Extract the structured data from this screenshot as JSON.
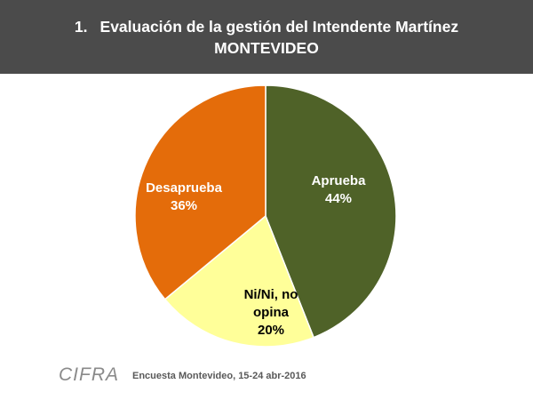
{
  "header": {
    "title_number": "1.",
    "title_line1": "Evaluación de la gestión del Intendente Martínez",
    "title_line2": "MONTEVIDEO"
  },
  "chart_data": {
    "type": "pie",
    "slices": [
      {
        "label_lines": [
          "Aprueba"
        ],
        "value": 44,
        "value_label": "44%",
        "color": "#4f6228",
        "label_color": "#ffffff"
      },
      {
        "label_lines": [
          "Ni/Ni, no",
          "opina"
        ],
        "value": 20,
        "value_label": "20%",
        "color": "#ffff99",
        "label_color": "#000000"
      },
      {
        "label_lines": [
          "Desaprueba"
        ],
        "value": 36,
        "value_label": "36%",
        "color": "#e46c0a",
        "label_color": "#ffffff"
      }
    ],
    "start": "12 o'clock",
    "direction": "clockwise"
  },
  "footer": {
    "logo_text": "CIFRA",
    "source": "Encuesta Montevideo,  15-24 abr-2016"
  }
}
